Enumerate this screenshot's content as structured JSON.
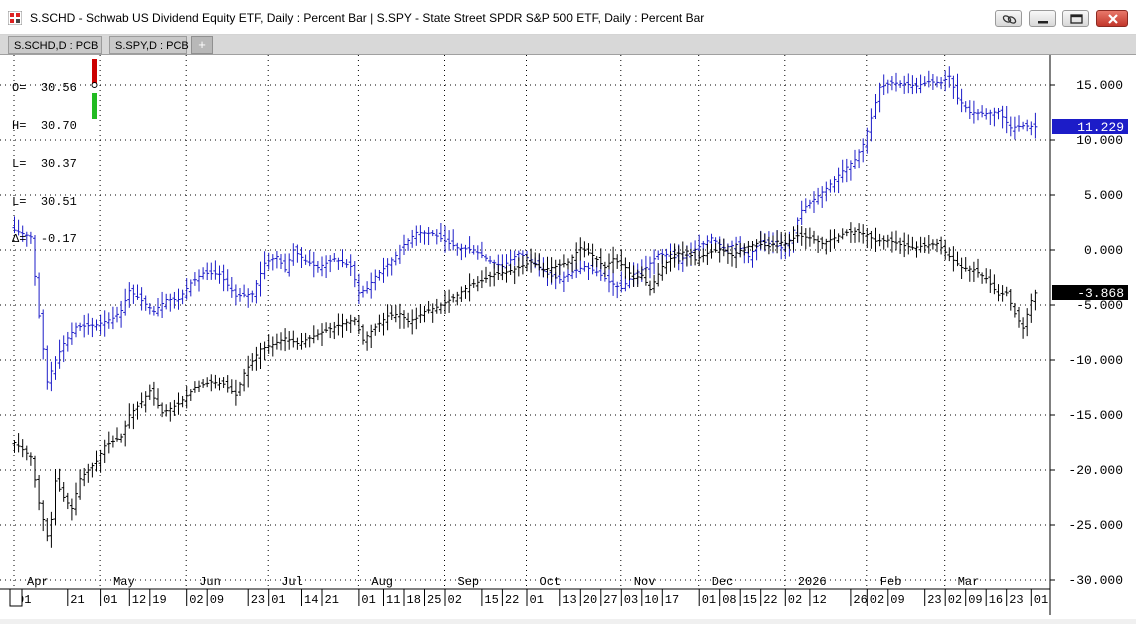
{
  "window": {
    "title": "S.SCHD - Schwab US Dividend Equity ETF, Daily : Percent Bar   |   S.SPY - State Street SPDR S&P 500 ETF, Daily : Percent Bar"
  },
  "tabs": [
    {
      "label": "S.SCHD,D : PCB"
    },
    {
      "label": "S.SPY,D : PCB"
    }
  ],
  "tab_add_label": "+",
  "ohlc_box": {
    "rows": [
      {
        "key": "O=",
        "value": "30.56"
      },
      {
        "key": "H=",
        "value": "30.70"
      },
      {
        "key": "L=",
        "value": "30.37"
      },
      {
        "key": "L=",
        "value": "30.51"
      },
      {
        "key": "Δ=",
        "value": "-0.17"
      }
    ]
  },
  "colors": {
    "schd": "#000000",
    "spy": "#1c1cc8",
    "schd_label_bg": "#000000",
    "spy_label_bg": "#1c1cc8",
    "grid": "#000000"
  },
  "chart_data": {
    "type": "bar",
    "ylim": [
      -30,
      17.5
    ],
    "y_ticks": [
      15,
      10,
      5,
      0,
      -5,
      -10,
      -15,
      -20,
      -25,
      -30
    ],
    "y_tick_labels": [
      "15.000",
      "10.000",
      "5.000",
      "0.000",
      "-5.000",
      "-10.000",
      "-15.000",
      "-20.000",
      "-25.000",
      "-30.000"
    ],
    "last_values": {
      "spy": "11.229",
      "schd": "-3.868"
    },
    "x_months": [
      {
        "label": "Apr",
        "i": 0
      },
      {
        "label": "May",
        "i": 21
      },
      {
        "label": "Jun",
        "i": 42
      },
      {
        "label": "Jul",
        "i": 62
      },
      {
        "label": "Aug",
        "i": 84
      },
      {
        "label": "Sep",
        "i": 105
      },
      {
        "label": "Oct",
        "i": 125
      },
      {
        "label": "Nov",
        "i": 148
      },
      {
        "label": "Dec",
        "i": 167
      },
      {
        "label": "2026",
        "i": 188
      },
      {
        "label": "Feb",
        "i": 208
      },
      {
        "label": "Mar",
        "i": 227
      }
    ],
    "x_days": [
      {
        "label": "01",
        "i": 0
      },
      {
        "label": "21",
        "i": 13
      },
      {
        "label": "01",
        "i": 21
      },
      {
        "label": "12",
        "i": 28
      },
      {
        "label": "19",
        "i": 33
      },
      {
        "label": "02",
        "i": 42
      },
      {
        "label": "09",
        "i": 47
      },
      {
        "label": "23",
        "i": 57
      },
      {
        "label": "01",
        "i": 62
      },
      {
        "label": "14",
        "i": 70
      },
      {
        "label": "21",
        "i": 75
      },
      {
        "label": "01",
        "i": 84
      },
      {
        "label": "11",
        "i": 90
      },
      {
        "label": "18",
        "i": 95
      },
      {
        "label": "25",
        "i": 100
      },
      {
        "label": "02",
        "i": 105
      },
      {
        "label": "15",
        "i": 114
      },
      {
        "label": "22",
        "i": 119
      },
      {
        "label": "01",
        "i": 125
      },
      {
        "label": "13",
        "i": 133
      },
      {
        "label": "20",
        "i": 138
      },
      {
        "label": "27",
        "i": 143
      },
      {
        "label": "03",
        "i": 148
      },
      {
        "label": "10",
        "i": 153
      },
      {
        "label": "17",
        "i": 158
      },
      {
        "label": "01",
        "i": 167
      },
      {
        "label": "08",
        "i": 172
      },
      {
        "label": "15",
        "i": 177
      },
      {
        "label": "22",
        "i": 182
      },
      {
        "label": "02",
        "i": 188
      },
      {
        "label": "12",
        "i": 194
      },
      {
        "label": "26",
        "i": 204
      },
      {
        "label": "02",
        "i": 208
      },
      {
        "label": "09",
        "i": 213
      },
      {
        "label": "23",
        "i": 222
      },
      {
        "label": "02",
        "i": 227
      },
      {
        "label": "09",
        "i": 232
      },
      {
        "label": "16",
        "i": 237
      },
      {
        "label": "23",
        "i": 242
      },
      {
        "label": "01",
        "i": 248
      }
    ],
    "bar_count": 250,
    "series": [
      {
        "name": "S.SPY",
        "anchors": [
          [
            0,
            1.8
          ],
          [
            4,
            1.2
          ],
          [
            6,
            -6
          ],
          [
            8,
            -12
          ],
          [
            10,
            -10
          ],
          [
            12,
            -8.5
          ],
          [
            15,
            -7
          ],
          [
            20,
            -6.8
          ],
          [
            24,
            -6.2
          ],
          [
            26,
            -5.5
          ],
          [
            28,
            -3.7
          ],
          [
            31,
            -4.6
          ],
          [
            34,
            -5.6
          ],
          [
            37,
            -4.5
          ],
          [
            40,
            -4.5
          ],
          [
            43,
            -3
          ],
          [
            46,
            -2.1
          ],
          [
            50,
            -2.2
          ],
          [
            54,
            -4.2
          ],
          [
            58,
            -4
          ],
          [
            61,
            -1.2
          ],
          [
            64,
            -0.6
          ],
          [
            66,
            -1.8
          ],
          [
            68,
            0
          ],
          [
            71,
            -1
          ],
          [
            74,
            -1.6
          ],
          [
            78,
            -0.8
          ],
          [
            82,
            -1.5
          ],
          [
            84,
            -3.9
          ],
          [
            86,
            -3.5
          ],
          [
            88,
            -2.4
          ],
          [
            90,
            -1.7
          ],
          [
            93,
            -0.5
          ],
          [
            95,
            0.5
          ],
          [
            98,
            1.6
          ],
          [
            102,
            1.5
          ],
          [
            105,
            0.8
          ],
          [
            108,
            0.2
          ],
          [
            112,
            0
          ],
          [
            116,
            -1
          ],
          [
            119,
            -1.5
          ],
          [
            121,
            -0.9
          ],
          [
            123,
            -0.3
          ],
          [
            126,
            -0.9
          ],
          [
            128,
            -1.6
          ],
          [
            130,
            -2.2
          ],
          [
            133,
            -2.7
          ],
          [
            136,
            -2
          ],
          [
            139,
            -1.5
          ],
          [
            142,
            -2
          ],
          [
            145,
            -2.9
          ],
          [
            148,
            -3.5
          ],
          [
            151,
            -2.2
          ],
          [
            154,
            -1.6
          ],
          [
            157,
            -0.4
          ],
          [
            160,
            -0.4
          ],
          [
            162,
            -1
          ],
          [
            165,
            -0.2
          ],
          [
            167,
            0.3
          ],
          [
            170,
            1.1
          ],
          [
            173,
            0.2
          ],
          [
            176,
            0.5
          ],
          [
            179,
            -0.6
          ],
          [
            182,
            0.8
          ],
          [
            185,
            0.5
          ],
          [
            187,
            0.2
          ],
          [
            189,
            0.9
          ],
          [
            192,
            3.6
          ],
          [
            195,
            4.6
          ],
          [
            198,
            5.6
          ],
          [
            202,
            7.2
          ],
          [
            205,
            8.2
          ],
          [
            207,
            9.6
          ],
          [
            209,
            12
          ],
          [
            211,
            14.8
          ],
          [
            214,
            15.2
          ],
          [
            217,
            15.1
          ],
          [
            220,
            14.9
          ],
          [
            223,
            15.3
          ],
          [
            226,
            15.2
          ],
          [
            228,
            15.8
          ],
          [
            230,
            13.8
          ],
          [
            233,
            12.5
          ],
          [
            237,
            12.4
          ],
          [
            240,
            12.6
          ],
          [
            243,
            11.1
          ],
          [
            246,
            11.3
          ],
          [
            249,
            11.2
          ]
        ]
      },
      {
        "name": "S.SCHD",
        "anchors": [
          [
            0,
            -17.5
          ],
          [
            4,
            -18.8
          ],
          [
            6,
            -23
          ],
          [
            8,
            -26
          ],
          [
            9,
            -24.5
          ],
          [
            10,
            -21
          ],
          [
            12,
            -22.5
          ],
          [
            14,
            -23.5
          ],
          [
            16,
            -20.8
          ],
          [
            20,
            -19.2
          ],
          [
            22,
            -17.8
          ],
          [
            26,
            -17
          ],
          [
            28,
            -15
          ],
          [
            31,
            -13.8
          ],
          [
            33,
            -12.8
          ],
          [
            36,
            -14.8
          ],
          [
            40,
            -14
          ],
          [
            44,
            -12.5
          ],
          [
            48,
            -12
          ],
          [
            51,
            -12.2
          ],
          [
            54,
            -13.2
          ],
          [
            56,
            -11.2
          ],
          [
            60,
            -9
          ],
          [
            63,
            -8.6
          ],
          [
            66,
            -8
          ],
          [
            69,
            -8.5
          ],
          [
            72,
            -8
          ],
          [
            76,
            -7.3
          ],
          [
            80,
            -6.7
          ],
          [
            83,
            -6.3
          ],
          [
            85,
            -8.2
          ],
          [
            88,
            -7
          ],
          [
            91,
            -6
          ],
          [
            94,
            -5.8
          ],
          [
            96,
            -6.5
          ],
          [
            98,
            -6.2
          ],
          [
            100,
            -5.6
          ],
          [
            103,
            -5.2
          ],
          [
            105,
            -4.8
          ],
          [
            108,
            -4.1
          ],
          [
            111,
            -3.2
          ],
          [
            114,
            -2.8
          ],
          [
            117,
            -2.2
          ],
          [
            120,
            -2
          ],
          [
            123,
            -1.6
          ],
          [
            126,
            -1.1
          ],
          [
            129,
            -1.8
          ],
          [
            132,
            -1.5
          ],
          [
            135,
            -1.1
          ],
          [
            138,
            0.2
          ],
          [
            141,
            -0.5
          ],
          [
            144,
            -1.6
          ],
          [
            146,
            -0.8
          ],
          [
            149,
            -1.6
          ],
          [
            151,
            -2.6
          ],
          [
            153,
            -2.3
          ],
          [
            155,
            -3.6
          ],
          [
            158,
            -1.5
          ],
          [
            161,
            -0.4
          ],
          [
            164,
            -0.1
          ],
          [
            166,
            -0.9
          ],
          [
            169,
            -0.3
          ],
          [
            172,
            0.1
          ],
          [
            175,
            -0.5
          ],
          [
            178,
            0.2
          ],
          [
            181,
            0.6
          ],
          [
            184,
            0.3
          ],
          [
            186,
            0.8
          ],
          [
            188,
            0.6
          ],
          [
            191,
            1.3
          ],
          [
            194,
            1.1
          ],
          [
            197,
            0.6
          ],
          [
            200,
            1.1
          ],
          [
            203,
            1.6
          ],
          [
            205,
            1.7
          ],
          [
            208,
            1.4
          ],
          [
            210,
            0.8
          ],
          [
            213,
            0.9
          ],
          [
            216,
            0.5
          ],
          [
            219,
            0.2
          ],
          [
            222,
            0.4
          ],
          [
            225,
            0.6
          ],
          [
            228,
            -0.6
          ],
          [
            231,
            -1.6
          ],
          [
            234,
            -1.8
          ],
          [
            237,
            -2.6
          ],
          [
            240,
            -4.1
          ],
          [
            242,
            -3.9
          ],
          [
            244,
            -5.8
          ],
          [
            246,
            -7.1
          ],
          [
            248,
            -4.6
          ],
          [
            249,
            -3.9
          ]
        ]
      }
    ]
  }
}
